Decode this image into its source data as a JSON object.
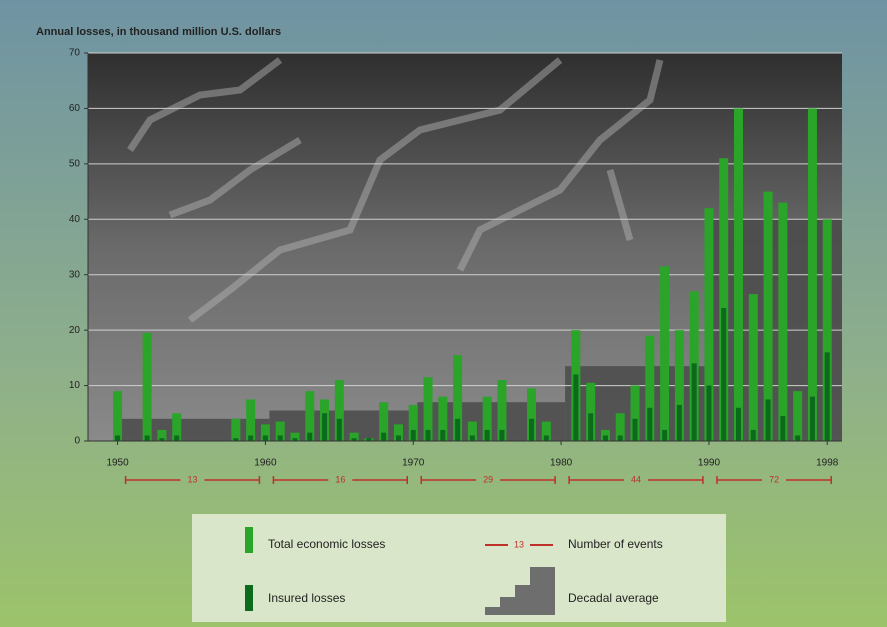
{
  "chart_data": {
    "type": "bar",
    "title": "Annual losses, in thousand million U.S. dollars",
    "x": [
      1950,
      1951,
      1952,
      1953,
      1954,
      1955,
      1956,
      1957,
      1958,
      1959,
      1960,
      1961,
      1962,
      1963,
      1964,
      1965,
      1966,
      1967,
      1968,
      1969,
      1970,
      1971,
      1972,
      1973,
      1974,
      1975,
      1976,
      1977,
      1978,
      1979,
      1980,
      1981,
      1982,
      1983,
      1984,
      1985,
      1986,
      1987,
      1988,
      1989,
      1990,
      1991,
      1992,
      1993,
      1994,
      1995,
      1996,
      1997,
      1998
    ],
    "series": [
      {
        "name": "Total economic losses",
        "color": "#2aa52a",
        "values": [
          9,
          0,
          19.5,
          2,
          5,
          0,
          0,
          0,
          4,
          7.5,
          3,
          3.5,
          1.5,
          9,
          7.5,
          11,
          1.5,
          0.5,
          7,
          3,
          6.5,
          11.5,
          8,
          15.5,
          3.5,
          8,
          11,
          0,
          9.5,
          3.5,
          0,
          20,
          10.5,
          2,
          5,
          10,
          19,
          31.5,
          20,
          27,
          42,
          51,
          60,
          26.5,
          45,
          43,
          9,
          60,
          40
        ]
      },
      {
        "name": "Insured losses",
        "color": "#0b6a1c",
        "values": [
          1,
          0,
          1,
          0.5,
          1,
          0,
          0,
          0,
          0.5,
          1,
          1,
          1,
          0.5,
          1.5,
          5,
          4,
          0.5,
          0.5,
          1.5,
          1,
          2,
          2,
          2,
          4,
          1,
          2,
          2,
          0,
          4,
          1,
          0,
          12,
          5,
          1,
          1,
          4,
          6,
          2,
          6.5,
          14,
          10,
          24,
          6,
          2,
          7.5,
          4.5,
          1,
          8,
          16
        ]
      }
    ],
    "decadal_average": {
      "name": "Decadal average",
      "color": "#4a4a4a",
      "values": [
        4,
        5.5,
        7,
        13.5,
        40
      ]
    },
    "events": {
      "name": "Number of events",
      "color": "#c0302a",
      "values": [
        13,
        16,
        29,
        44,
        72
      ]
    },
    "xlim": [
      1948,
      1999
    ],
    "xticks": [
      1950,
      1960,
      1970,
      1980,
      1990,
      1998
    ],
    "ylim": [
      0,
      70
    ],
    "yticks": [
      0,
      10,
      20,
      30,
      40,
      50,
      60,
      70
    ],
    "grid": true
  }
}
